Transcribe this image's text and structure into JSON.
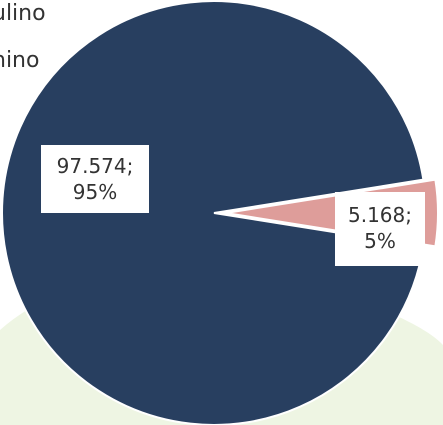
{
  "chart_data": {
    "type": "pie",
    "categories": [
      "...ulino",
      "...nino"
    ],
    "values": [
      97.574,
      5.168
    ],
    "percents": [
      "95%",
      "5%"
    ],
    "data_labels": [
      {
        "value": "97.574;",
        "percent": "95%"
      },
      {
        "value": "5.168;",
        "percent": "5%"
      }
    ],
    "colors": [
      "#283f60",
      "#de9d9a"
    ],
    "exploded_slice": 1,
    "legend": [
      "ulino",
      "nino"
    ],
    "legend_placement": "top-left"
  },
  "background": {
    "green_tint": "#eef5e3"
  }
}
